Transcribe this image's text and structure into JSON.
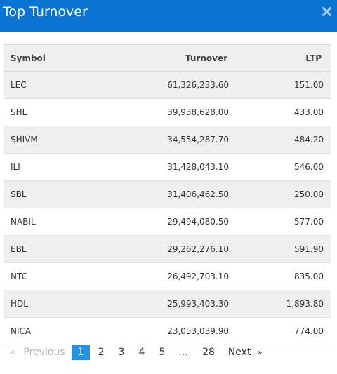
{
  "modal": {
    "title": "Top Turnover"
  },
  "table": {
    "headers": {
      "symbol": "Symbol",
      "turnover": "Turnover",
      "ltp": "LTP"
    },
    "rows": [
      {
        "symbol": "LEC",
        "turnover": "61,326,233.60",
        "ltp": "151.00"
      },
      {
        "symbol": "SHL",
        "turnover": "39,938,628.00",
        "ltp": "433.00"
      },
      {
        "symbol": "SHIVM",
        "turnover": "34,554,287.70",
        "ltp": "484.20"
      },
      {
        "symbol": "ILI",
        "turnover": "31,428,043.10",
        "ltp": "546.00"
      },
      {
        "symbol": "SBL",
        "turnover": "31,406,462.50",
        "ltp": "250.00"
      },
      {
        "symbol": "NABIL",
        "turnover": "29,494,080.50",
        "ltp": "577.00"
      },
      {
        "symbol": "EBL",
        "turnover": "29,262,276.10",
        "ltp": "591.90"
      },
      {
        "symbol": "NTC",
        "turnover": "26,492,703.10",
        "ltp": "835.00"
      },
      {
        "symbol": "HDL",
        "turnover": "25,993,403.30",
        "ltp": "1,893.80"
      },
      {
        "symbol": "NICA",
        "turnover": "23,053,039.90",
        "ltp": "774.00"
      }
    ]
  },
  "pagination": {
    "prev_arrow": "«",
    "prev_label": "Previous",
    "pages": [
      "1",
      "2",
      "3",
      "4",
      "5"
    ],
    "ellipsis": "…",
    "last_page": "28",
    "next_label": "Next",
    "next_arrow": "»",
    "current": "1"
  },
  "colors": {
    "header": "#0b73d2",
    "active_page": "#2a8fdc"
  }
}
